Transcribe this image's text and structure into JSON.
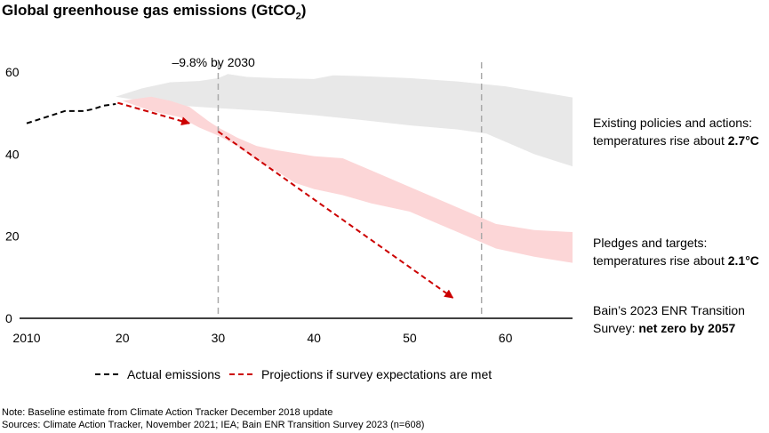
{
  "title": {
    "main": "Global greenhouse gas emissions (GtCO",
    "sub": "2",
    "close": ")"
  },
  "chart_data": {
    "type": "area",
    "title": "Global greenhouse gas emissions (GtCO2)",
    "x_domain": [
      2010,
      2067
    ],
    "ylim": [
      0,
      60
    ],
    "x_ticks": [
      {
        "value": 2010,
        "label": "2010"
      },
      {
        "value": 2020,
        "label": "20"
      },
      {
        "value": 2030,
        "label": "30"
      },
      {
        "value": 2040,
        "label": "40"
      },
      {
        "value": 2050,
        "label": "50"
      },
      {
        "value": 2060,
        "label": "60"
      }
    ],
    "y_ticks": [
      {
        "value": 0,
        "label": "0"
      },
      {
        "value": 20,
        "label": "20"
      },
      {
        "value": 40,
        "label": "40"
      },
      {
        "value": 60,
        "label": "60"
      }
    ],
    "vlines": [
      {
        "x": 2030,
        "label": "–9.8% by 2030"
      },
      {
        "x": 2057.5
      }
    ],
    "series": [
      {
        "name": "Existing policies and actions",
        "kind": "band",
        "color": "#e8e8e8",
        "upper": [
          [
            2019.3,
            54
          ],
          [
            2022,
            56
          ],
          [
            2025,
            57.5
          ],
          [
            2028,
            57.8
          ],
          [
            2030,
            58.5
          ],
          [
            2031,
            59.5
          ],
          [
            2033,
            58.8
          ],
          [
            2036,
            58.5
          ],
          [
            2040,
            58.3
          ],
          [
            2042,
            59.2
          ],
          [
            2045,
            59
          ],
          [
            2050,
            58.5
          ],
          [
            2055,
            57.7
          ],
          [
            2060,
            56.5
          ],
          [
            2067,
            53.8
          ]
        ],
        "lower": [
          [
            2019.3,
            54
          ],
          [
            2022,
            53
          ],
          [
            2025,
            52
          ],
          [
            2028,
            51.5
          ],
          [
            2030,
            51.2
          ],
          [
            2035,
            50.5
          ],
          [
            2040,
            49.5
          ],
          [
            2045,
            48.3
          ],
          [
            2050,
            47
          ],
          [
            2055,
            46
          ],
          [
            2058,
            45
          ],
          [
            2060,
            43
          ],
          [
            2063,
            40
          ],
          [
            2067,
            37
          ]
        ]
      },
      {
        "name": "Pledges and targets",
        "kind": "band",
        "color": "#fcd6d7",
        "upper": [
          [
            2020,
            53
          ],
          [
            2023,
            54
          ],
          [
            2025,
            53
          ],
          [
            2027,
            51.5
          ],
          [
            2029,
            48
          ],
          [
            2030,
            46.5
          ],
          [
            2032,
            44
          ],
          [
            2034,
            42
          ],
          [
            2036,
            41
          ],
          [
            2040,
            39.5
          ],
          [
            2043,
            39
          ],
          [
            2046,
            36
          ],
          [
            2050,
            32
          ],
          [
            2053,
            29
          ],
          [
            2056,
            26
          ],
          [
            2059,
            23
          ],
          [
            2063,
            21.5
          ],
          [
            2067,
            21
          ]
        ],
        "lower": [
          [
            2020,
            53
          ],
          [
            2023,
            50.5
          ],
          [
            2026,
            49
          ],
          [
            2028,
            46.5
          ],
          [
            2030,
            44.5
          ],
          [
            2032,
            42
          ],
          [
            2034,
            38.5
          ],
          [
            2036,
            36
          ],
          [
            2038,
            33
          ],
          [
            2040,
            31.5
          ],
          [
            2043,
            30
          ],
          [
            2046,
            28
          ],
          [
            2050,
            26
          ],
          [
            2053,
            23
          ],
          [
            2056,
            20
          ],
          [
            2059,
            17
          ],
          [
            2063,
            15
          ],
          [
            2067,
            13.5
          ]
        ]
      },
      {
        "name": "Actual emissions",
        "kind": "line",
        "style": "dashed",
        "color": "#000000",
        "points": [
          [
            2010,
            47.5
          ],
          [
            2012,
            49
          ],
          [
            2014,
            50.5
          ],
          [
            2016,
            50.5
          ],
          [
            2017,
            51
          ],
          [
            2018,
            51.8
          ],
          [
            2019.3,
            52.2
          ]
        ]
      },
      {
        "name": "Projections if survey expectations are met",
        "kind": "arrow",
        "style": "dashed",
        "color": "#cc0000",
        "segments": [
          [
            [
              2019.5,
              52.5
            ],
            [
              2027,
              47.5
            ]
          ],
          [
            [
              2030,
              45.5
            ],
            [
              2054.5,
              5
            ]
          ]
        ]
      }
    ]
  },
  "annotations": {
    "existing_line1": "Existing policies and actions:",
    "existing_line2": "temperatures rise about ",
    "existing_temp": "2.7°C",
    "pledges_line1": "Pledges and targets:",
    "pledges_line2": "temperatures rise about ",
    "pledges_temp": "2.1°C",
    "bain_line1": "Bain’s 2023 ENR Transition",
    "bain_line2": "Survey: ",
    "bain_bold": "net zero by 2057"
  },
  "legend": {
    "actual": "Actual emissions",
    "projection": "Projections if survey expectations are met"
  },
  "notes": {
    "note": "Note: Baseline estimate from Climate Action Tracker December 2018 update",
    "sources": "Sources: Climate Action Tracker, November 2021; IEA; Bain ENR Transition Survey 2023 (n=608)"
  }
}
